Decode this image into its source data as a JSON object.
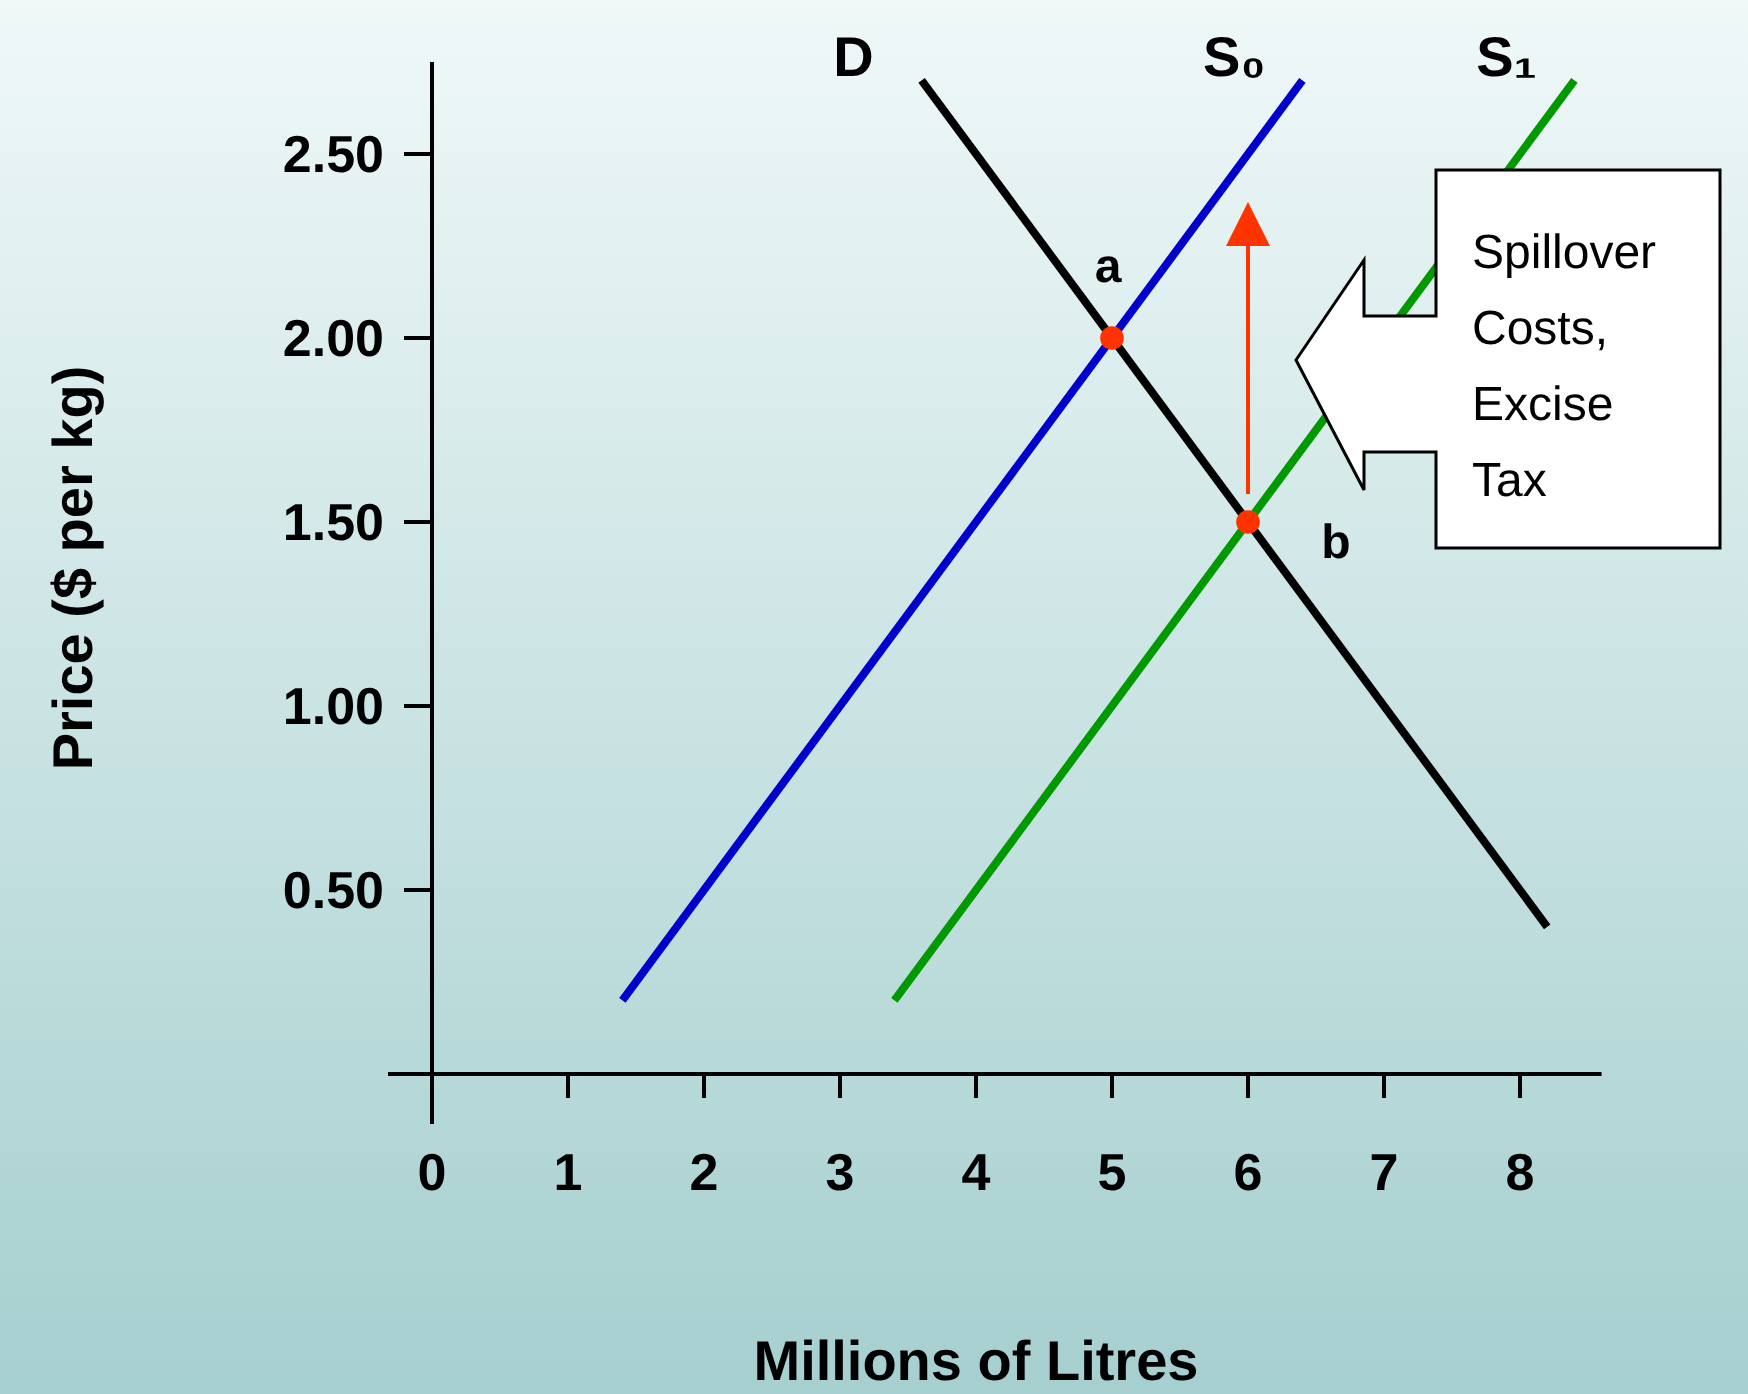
{
  "chart_data": {
    "type": "line",
    "xlabel": "Millions of Litres",
    "ylabel": "Price ($ per kg)",
    "xlim": [
      0,
      8.6
    ],
    "ylim": [
      0,
      2.75
    ],
    "xticks": [
      0,
      1,
      2,
      3,
      4,
      5,
      6,
      7,
      8
    ],
    "yticks": [
      {
        "value": 0.5,
        "label": "0.50"
      },
      {
        "value": 1,
        "label": "1.00"
      },
      {
        "value": 1.5,
        "label": "1.50"
      },
      {
        "value": 2,
        "label": "2.00"
      },
      {
        "value": 2.5,
        "label": "2.50"
      }
    ],
    "grid": false,
    "marker": "none",
    "line_style": "solid",
    "series": [
      {
        "name": "D",
        "color": "#000000",
        "x": [
          3.6,
          8.2
        ],
        "values": [
          2.7,
          0.4
        ]
      },
      {
        "name": "S₀",
        "color": "#0000cc",
        "x": [
          1.4,
          6.4
        ],
        "values": [
          0.2,
          2.7
        ]
      },
      {
        "name": "S₁",
        "color": "#009900",
        "x": [
          3.4,
          8.4
        ],
        "values": [
          0.2,
          2.7
        ]
      },
      {
        "type": "scatter",
        "marker": "circle",
        "color": "#ff3300",
        "x": [
          5,
          6
        ],
        "values": [
          2,
          1.5
        ]
      }
    ],
    "annotations": [
      {
        "text": "a",
        "x": 5,
        "y": 2
      },
      {
        "text": "b",
        "x": 6,
        "y": 1.5
      },
      "Spillover Costs, Excise Tax"
    ]
  }
}
